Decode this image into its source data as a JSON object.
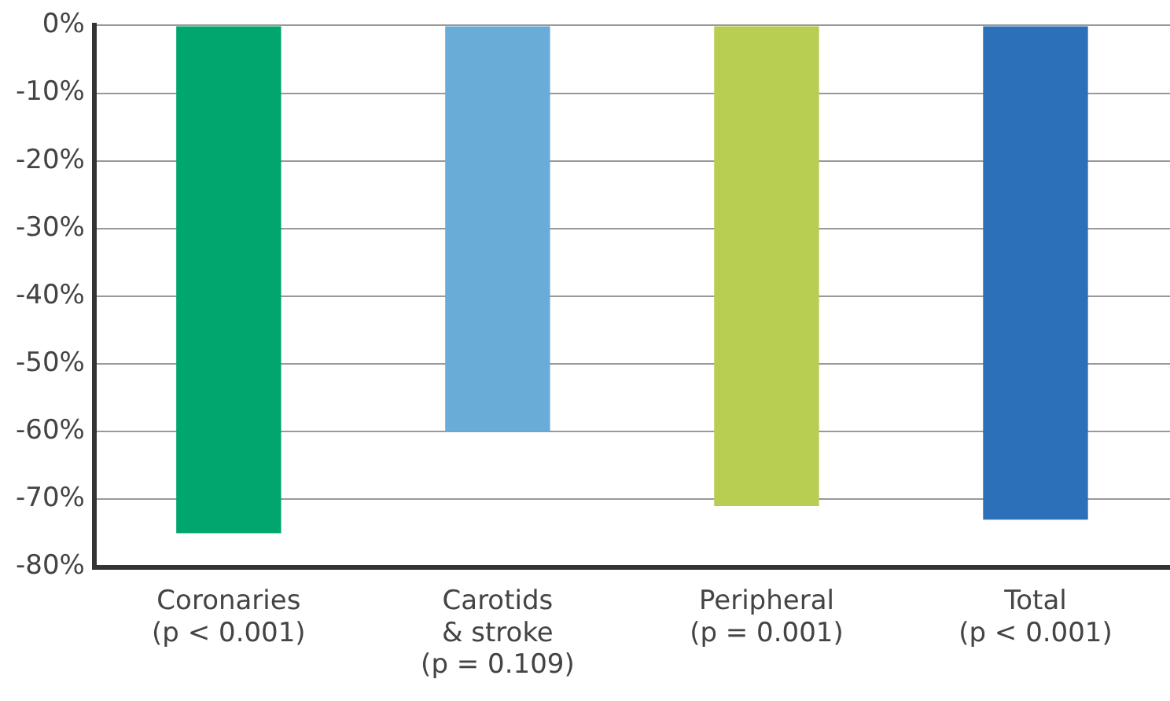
{
  "chart_data": {
    "type": "bar",
    "categories": [
      "Coronaries\n(p < 0.001)",
      "Carotids\n& stroke\n(p = 0.109)",
      "Peripheral\n(p = 0.001)",
      "Total\n(p < 0.001)"
    ],
    "values": [
      -75,
      -60,
      -71,
      -73
    ],
    "colors": [
      "#00a66e",
      "#68acd7",
      "#b7ce52",
      "#2c70b9"
    ],
    "ylim": [
      -80,
      0
    ],
    "yticks": [
      {
        "value": 0,
        "label": "0%"
      },
      {
        "value": -10,
        "label": "-10%"
      },
      {
        "value": -20,
        "label": "-20%"
      },
      {
        "value": -30,
        "label": "-30%"
      },
      {
        "value": -40,
        "label": "-40%"
      },
      {
        "value": -50,
        "label": "-50%"
      },
      {
        "value": -60,
        "label": "-60%"
      },
      {
        "value": -70,
        "label": "-70%"
      },
      {
        "value": -80,
        "label": "-80%"
      }
    ],
    "grid": "y",
    "legend": false
  }
}
